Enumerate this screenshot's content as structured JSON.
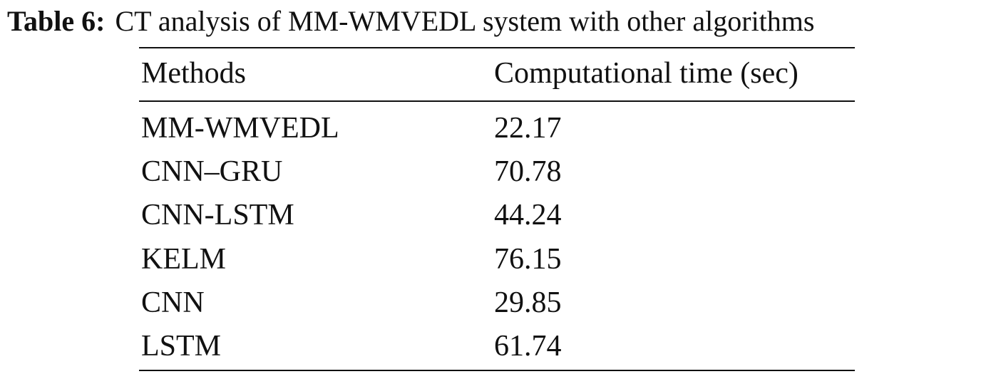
{
  "caption": {
    "label": "Table 6:",
    "text": "CT analysis of MM-WMVEDL system with other algorithms"
  },
  "table": {
    "header": [
      "Methods",
      "Computational time (sec)"
    ],
    "rows": [
      [
        "MM-WMVEDL",
        "22.17"
      ],
      [
        "CNN–GRU",
        "70.78"
      ],
      [
        "CNN-LSTM",
        "44.24"
      ],
      [
        "KELM",
        "76.15"
      ],
      [
        "CNN",
        "29.85"
      ],
      [
        "LSTM",
        "61.74"
      ]
    ]
  }
}
